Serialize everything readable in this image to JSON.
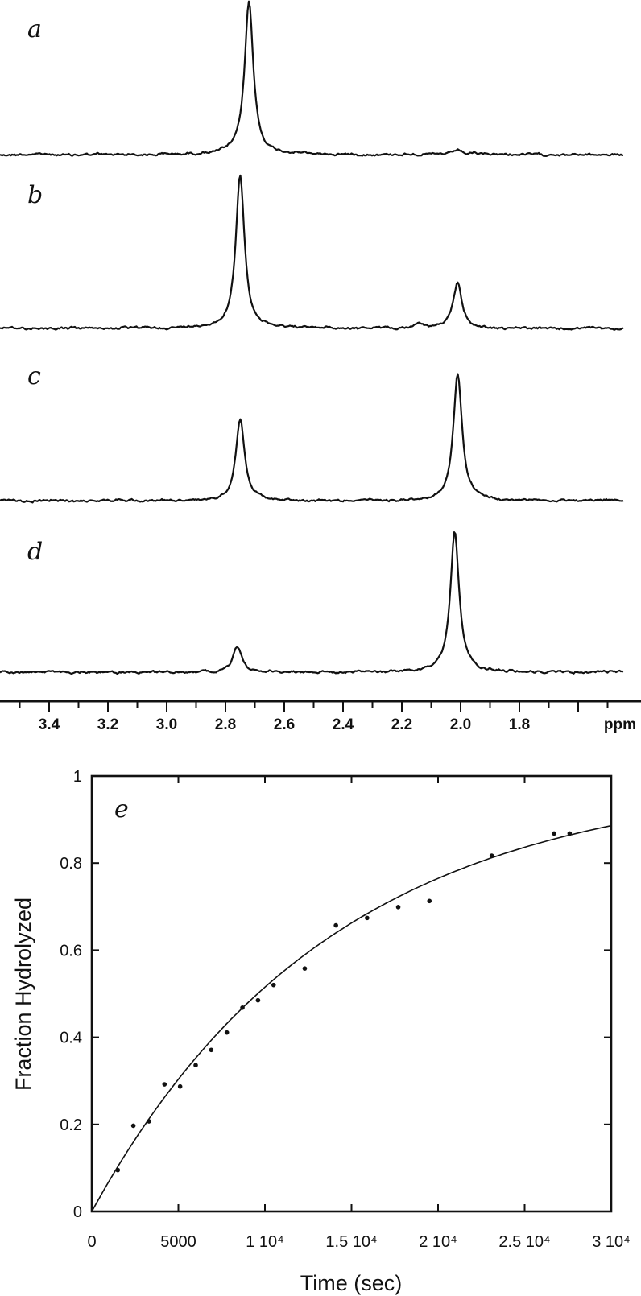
{
  "chart_data": [
    {
      "type": "line",
      "panel": "nmr-spectra",
      "xlabel": "ppm",
      "x_reversed": true,
      "xlim": [
        3.5,
        1.5
      ],
      "x_ticks": [
        3.4,
        3.2,
        3.0,
        2.8,
        2.6,
        2.4,
        2.2,
        2.0,
        1.8
      ],
      "x_tick_labels": [
        "3.4",
        "3.2",
        "3.0",
        "2.8",
        "2.6",
        "2.4",
        "2.2",
        "2.0",
        "1.8"
      ],
      "grid": false,
      "series": [
        {
          "label": "a",
          "peaks": [
            {
              "ppm": 2.72,
              "height": 1.0
            },
            {
              "ppm": 2.01,
              "height": 0.03
            }
          ]
        },
        {
          "label": "b",
          "peaks": [
            {
              "ppm": 2.75,
              "height": 1.0
            },
            {
              "ppm": 2.01,
              "height": 0.3
            },
            {
              "ppm": 2.14,
              "height": 0.03
            }
          ]
        },
        {
          "label": "c",
          "peaks": [
            {
              "ppm": 2.75,
              "height": 0.54
            },
            {
              "ppm": 2.01,
              "height": 0.83
            }
          ]
        },
        {
          "label": "d",
          "peaks": [
            {
              "ppm": 2.76,
              "height": 0.17
            },
            {
              "ppm": 2.02,
              "height": 0.92
            }
          ]
        }
      ]
    },
    {
      "type": "scatter",
      "panel_label": "e",
      "xlabel": "Time (sec)",
      "ylabel": "Fraction Hydrolyzed",
      "xlim": [
        0,
        30000
      ],
      "ylim": [
        0,
        1
      ],
      "x_ticks": [
        0,
        5000,
        10000,
        15000,
        20000,
        25000,
        30000
      ],
      "x_tick_labels": [
        "0",
        "5000",
        "1 10⁴",
        "1.5 10⁴",
        "2 10⁴",
        "2.5 10⁴",
        "3 10⁴"
      ],
      "y_ticks": [
        0,
        0.2,
        0.4,
        0.6,
        0.8,
        1
      ],
      "y_tick_labels": [
        "0",
        "0.2",
        "0.4",
        "0.6",
        "0.8",
        "1"
      ],
      "grid": false,
      "x": [
        1500,
        2400,
        3300,
        4200,
        5100,
        6000,
        6900,
        7800,
        8700,
        9600,
        10500,
        12300,
        14100,
        15900,
        17700,
        19500,
        23100,
        26700,
        27600
      ],
      "y": [
        0.095,
        0.197,
        0.207,
        0.292,
        0.287,
        0.336,
        0.371,
        0.411,
        0.468,
        0.485,
        0.52,
        0.558,
        0.657,
        0.674,
        0.699,
        0.713,
        0.817,
        0.868,
        0.868
      ],
      "fit": {
        "form": "1 - exp(-k t)",
        "k_per_sec": 7.24e-05
      }
    }
  ]
}
